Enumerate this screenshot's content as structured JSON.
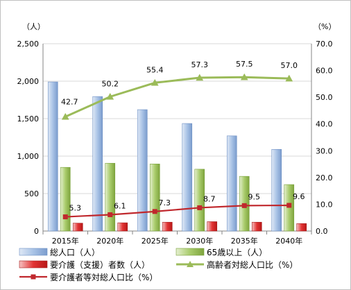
{
  "chart_data": {
    "type": "bar",
    "categories": [
      "2015年",
      "2020年",
      "2025年",
      "2030年",
      "2035年",
      "2040年"
    ],
    "left_axis": {
      "unit": "（人）",
      "range": [
        0,
        2500
      ],
      "ticks": [
        "0",
        "500",
        "1,000",
        "1,500",
        "2,000",
        "2,500"
      ]
    },
    "right_axis": {
      "unit": "（%）",
      "range": [
        0,
        70
      ],
      "ticks": [
        "0.0",
        "10.0",
        "20.0",
        "30.0",
        "40.0",
        "50.0",
        "60.0",
        "70.0"
      ]
    },
    "grid": true,
    "legend_position": "bottom",
    "series": [
      {
        "name": "総人口（人）",
        "type": "bar",
        "axis": "left",
        "color": "#95b3d7",
        "values": [
          1990,
          1795,
          1620,
          1435,
          1270,
          1090
        ]
      },
      {
        "name": "65歳以上（人）",
        "type": "bar",
        "axis": "left",
        "color": "#9bbb59",
        "values": [
          850,
          905,
          895,
          825,
          730,
          620
        ]
      },
      {
        "name": "要介護（支援）者数（人）",
        "type": "bar",
        "axis": "left",
        "color": "#e03030",
        "values": [
          105,
          110,
          118,
          125,
          118,
          100
        ]
      },
      {
        "name": "高齢者対総人口比（%）",
        "type": "line",
        "axis": "right",
        "color": "#9bbb59",
        "marker": "triangle",
        "values": [
          42.7,
          50.2,
          55.4,
          57.3,
          57.5,
          57.0
        ],
        "labels": [
          "42.7",
          "50.2",
          "55.4",
          "57.3",
          "57.5",
          "57.0"
        ]
      },
      {
        "name": "要介護者等対総人口比（%）",
        "type": "line",
        "axis": "right",
        "color": "#c0282d",
        "marker": "square",
        "values": [
          5.3,
          6.1,
          7.3,
          8.7,
          9.5,
          9.6
        ],
        "labels": [
          "5.3",
          "6.1",
          "7.3",
          "8.7",
          "9.5",
          "9.6"
        ]
      }
    ]
  }
}
